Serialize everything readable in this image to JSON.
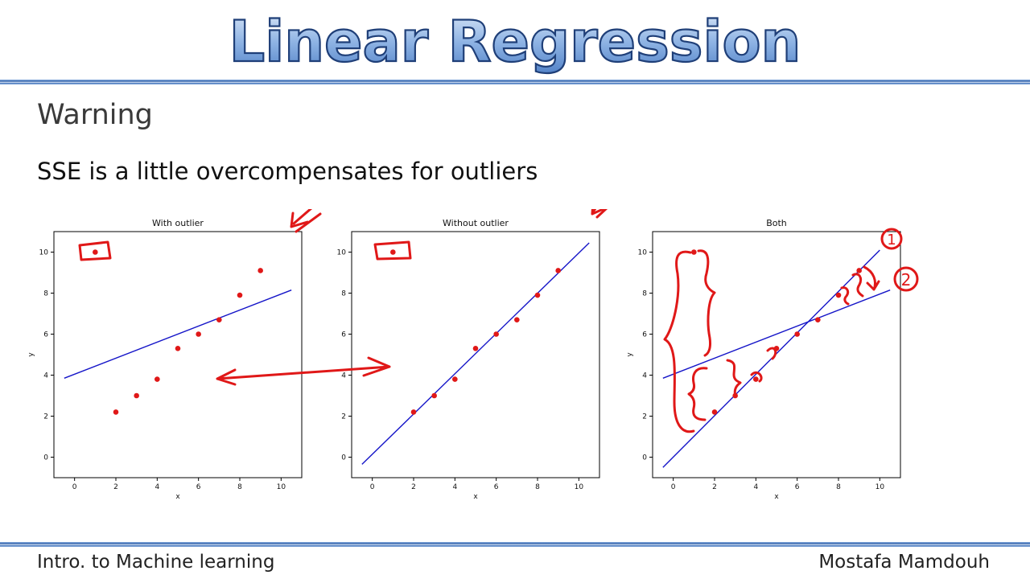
{
  "slide": {
    "title": "Linear Regression",
    "subtitle": "Warning",
    "warning_text": "SSE is a little overcompensates for outliers",
    "footer_left": "Intro. to Machine learning",
    "footer_right": "Mostafa Mamdouh"
  },
  "colors": {
    "points": "#e01818",
    "line": "#1515c8",
    "annotation": "#e01818",
    "title_fill": "#6e9bd6",
    "title_stroke": "#1f3f78",
    "rule": "#2f5fa8"
  },
  "chart_data": [
    {
      "type": "scatter",
      "title": "With outlier",
      "xlabel": "x",
      "ylabel": "y",
      "xlim": [
        -1,
        11
      ],
      "ylim": [
        -1,
        11
      ],
      "xticks": [
        0,
        2,
        4,
        6,
        8,
        10
      ],
      "yticks": [
        0,
        2,
        4,
        6,
        8,
        10
      ],
      "points": [
        [
          1,
          10
        ],
        [
          2,
          2.2
        ],
        [
          3,
          3.0
        ],
        [
          4,
          3.8
        ],
        [
          5,
          5.3
        ],
        [
          6,
          6.0
        ],
        [
          7,
          6.7
        ],
        [
          8,
          7.9
        ],
        [
          9,
          9.1
        ]
      ],
      "lines": [
        [
          [
            -0.5,
            3.85
          ],
          [
            10.5,
            8.15
          ]
        ]
      ]
    },
    {
      "type": "scatter",
      "title": "Without outlier",
      "xlabel": "x",
      "ylabel": "",
      "xlim": [
        -1,
        11
      ],
      "ylim": [
        -1,
        11
      ],
      "xticks": [
        0,
        2,
        4,
        6,
        8,
        10
      ],
      "yticks": [
        0,
        2,
        4,
        6,
        8,
        10
      ],
      "points": [
        [
          1,
          10
        ],
        [
          2,
          2.2
        ],
        [
          3,
          3.0
        ],
        [
          4,
          3.8
        ],
        [
          5,
          5.3
        ],
        [
          6,
          6.0
        ],
        [
          7,
          6.7
        ],
        [
          8,
          7.9
        ],
        [
          9,
          9.1
        ]
      ],
      "lines": [
        [
          [
            -0.5,
            -0.35
          ],
          [
            10.5,
            10.45
          ]
        ]
      ]
    },
    {
      "type": "scatter",
      "title": "Both",
      "xlabel": "x",
      "ylabel": "y",
      "xlim": [
        -1,
        11
      ],
      "ylim": [
        -1,
        11
      ],
      "xticks": [
        0,
        2,
        4,
        6,
        8,
        10
      ],
      "yticks": [
        0,
        2,
        4,
        6,
        8,
        10
      ],
      "points": [
        [
          1,
          10
        ],
        [
          2,
          2.2
        ],
        [
          3,
          3.0
        ],
        [
          4,
          3.8
        ],
        [
          5,
          5.3
        ],
        [
          6,
          6.0
        ],
        [
          7,
          6.7
        ],
        [
          8,
          7.9
        ],
        [
          9,
          9.1
        ]
      ],
      "lines": [
        [
          [
            -0.5,
            3.85
          ],
          [
            10.5,
            8.15
          ]
        ],
        [
          [
            -0.5,
            -0.5
          ],
          [
            10.0,
            10.1
          ]
        ]
      ]
    }
  ],
  "annotations": {
    "line_labels": [
      "1",
      "2"
    ]
  }
}
